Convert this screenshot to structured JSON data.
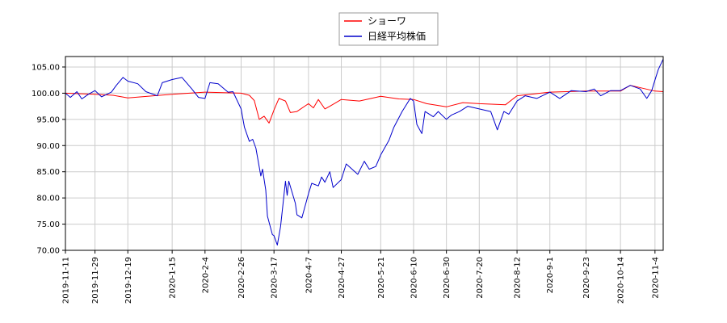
{
  "chart_data": {
    "type": "line",
    "title": "",
    "xlabel": "",
    "ylabel": "",
    "ylim": [
      70,
      107
    ],
    "grid": true,
    "legend_position": "top-center",
    "y_ticks": [
      "70.00",
      "75.00",
      "80.00",
      "85.00",
      "90.00",
      "95.00",
      "100.00",
      "105.00"
    ],
    "x_ticks": [
      "2019-11-11",
      "2019-11-29",
      "2019-12-19",
      "2020-1-15",
      "2020-2-4",
      "2020-2-26",
      "2020-3-17",
      "2020-4-7",
      "2020-4-27",
      "2020-5-21",
      "2020-6-10",
      "2020-6-30",
      "2020-7-20",
      "2020-8-12",
      "2020-9-1",
      "2020-9-23",
      "2020-10-14",
      "2020-11-4"
    ],
    "series": [
      {
        "name": "ショーワ",
        "color": "#ff0000",
        "points": [
          [
            "2019-11-11",
            100.0
          ],
          [
            "2019-11-29",
            99.8
          ],
          [
            "2019-12-10",
            99.6
          ],
          [
            "2019-12-19",
            99.1
          ],
          [
            "2020-1-15",
            99.8
          ],
          [
            "2020-2-4",
            100.2
          ],
          [
            "2020-2-26",
            100.0
          ],
          [
            "2020-3-2",
            99.6
          ],
          [
            "2020-3-5",
            98.6
          ],
          [
            "2020-3-8",
            95.0
          ],
          [
            "2020-3-11",
            95.6
          ],
          [
            "2020-3-14",
            94.3
          ],
          [
            "2020-3-17",
            96.8
          ],
          [
            "2020-3-20",
            99.0
          ],
          [
            "2020-3-24",
            98.5
          ],
          [
            "2020-3-27",
            96.3
          ],
          [
            "2020-3-31",
            96.5
          ],
          [
            "2020-4-7",
            98.0
          ],
          [
            "2020-4-10",
            97.2
          ],
          [
            "2020-4-13",
            98.8
          ],
          [
            "2020-4-17",
            97.0
          ],
          [
            "2020-4-20",
            97.5
          ],
          [
            "2020-4-27",
            98.8
          ],
          [
            "2020-5-8",
            98.5
          ],
          [
            "2020-5-21",
            99.4
          ],
          [
            "2020-6-1",
            98.9
          ],
          [
            "2020-6-10",
            98.8
          ],
          [
            "2020-6-18",
            98.0
          ],
          [
            "2020-6-30",
            97.4
          ],
          [
            "2020-7-10",
            98.2
          ],
          [
            "2020-7-20",
            98.0
          ],
          [
            "2020-8-5",
            97.8
          ],
          [
            "2020-8-12",
            99.5
          ],
          [
            "2020-9-1",
            100.2
          ],
          [
            "2020-9-23",
            100.4
          ],
          [
            "2020-10-14",
            100.4
          ],
          [
            "2020-10-20",
            101.5
          ],
          [
            "2020-11-4",
            100.4
          ],
          [
            "2020-11-9",
            100.3
          ]
        ]
      },
      {
        "name": "日経平均株価",
        "color": "#0000cc",
        "points": [
          [
            "2019-11-11",
            100.0
          ],
          [
            "2019-11-14",
            99.2
          ],
          [
            "2019-11-18",
            100.3
          ],
          [
            "2019-11-21",
            98.9
          ],
          [
            "2019-11-25",
            99.8
          ],
          [
            "2019-11-29",
            100.5
          ],
          [
            "2019-12-3",
            99.3
          ],
          [
            "2019-12-9",
            100.2
          ],
          [
            "2019-12-12",
            101.5
          ],
          [
            "2019-12-16",
            103.0
          ],
          [
            "2019-12-19",
            102.3
          ],
          [
            "2019-12-25",
            101.8
          ],
          [
            "2019-12-30",
            100.3
          ],
          [
            "2020-1-6",
            99.5
          ],
          [
            "2020-1-9",
            102.0
          ],
          [
            "2020-1-15",
            102.6
          ],
          [
            "2020-1-21",
            103.0
          ],
          [
            "2020-1-27",
            100.8
          ],
          [
            "2020-1-31",
            99.2
          ],
          [
            "2020-2-4",
            99.0
          ],
          [
            "2020-2-7",
            102.0
          ],
          [
            "2020-2-12",
            101.8
          ],
          [
            "2020-2-18",
            100.2
          ],
          [
            "2020-2-21",
            100.3
          ],
          [
            "2020-2-26",
            97.0
          ],
          [
            "2020-2-28",
            93.5
          ],
          [
            "2020-3-2",
            90.8
          ],
          [
            "2020-3-4",
            91.2
          ],
          [
            "2020-3-6",
            89.5
          ],
          [
            "2020-3-9",
            84.2
          ],
          [
            "2020-3-10",
            85.5
          ],
          [
            "2020-3-12",
            81.5
          ],
          [
            "2020-3-13",
            76.5
          ],
          [
            "2020-3-16",
            73.0
          ],
          [
            "2020-3-17",
            72.8
          ],
          [
            "2020-3-19",
            71.0
          ],
          [
            "2020-3-21",
            74.5
          ],
          [
            "2020-3-24",
            83.2
          ],
          [
            "2020-3-25",
            80.5
          ],
          [
            "2020-3-26",
            83.2
          ],
          [
            "2020-3-30",
            79.0
          ],
          [
            "2020-3-31",
            76.8
          ],
          [
            "2020-4-3",
            76.2
          ],
          [
            "2020-4-7",
            80.8
          ],
          [
            "2020-4-9",
            82.8
          ],
          [
            "2020-4-13",
            82.3
          ],
          [
            "2020-4-15",
            84.0
          ],
          [
            "2020-4-17",
            83.0
          ],
          [
            "2020-4-20",
            85.0
          ],
          [
            "2020-4-22",
            82.0
          ],
          [
            "2020-4-27",
            83.5
          ],
          [
            "2020-4-30",
            86.5
          ],
          [
            "2020-5-7",
            84.5
          ],
          [
            "2020-5-11",
            87.0
          ],
          [
            "2020-5-14",
            85.5
          ],
          [
            "2020-5-18",
            86.0
          ],
          [
            "2020-5-21",
            88.2
          ],
          [
            "2020-5-26",
            91.0
          ],
          [
            "2020-5-29",
            93.5
          ],
          [
            "2020-6-3",
            96.5
          ],
          [
            "2020-6-8",
            99.0
          ],
          [
            "2020-6-10",
            98.5
          ],
          [
            "2020-6-12",
            94.0
          ],
          [
            "2020-6-15",
            92.3
          ],
          [
            "2020-6-17",
            96.5
          ],
          [
            "2020-6-22",
            95.5
          ],
          [
            "2020-6-25",
            96.5
          ],
          [
            "2020-6-30",
            95.0
          ],
          [
            "2020-7-3",
            95.8
          ],
          [
            "2020-7-8",
            96.5
          ],
          [
            "2020-7-13",
            97.5
          ],
          [
            "2020-7-20",
            97.0
          ],
          [
            "2020-7-27",
            96.5
          ],
          [
            "2020-7-31",
            93.0
          ],
          [
            "2020-8-4",
            96.5
          ],
          [
            "2020-8-7",
            96.0
          ],
          [
            "2020-8-12",
            98.5
          ],
          [
            "2020-8-17",
            99.5
          ],
          [
            "2020-8-24",
            99.0
          ],
          [
            "2020-9-1",
            100.2
          ],
          [
            "2020-9-7",
            99.0
          ],
          [
            "2020-9-14",
            100.5
          ],
          [
            "2020-9-23",
            100.3
          ],
          [
            "2020-9-28",
            100.8
          ],
          [
            "2020-10-2",
            99.5
          ],
          [
            "2020-10-8",
            100.5
          ],
          [
            "2020-10-14",
            100.5
          ],
          [
            "2020-10-20",
            101.5
          ],
          [
            "2020-10-26",
            100.8
          ],
          [
            "2020-10-30",
            99.0
          ],
          [
            "2020-11-2",
            100.5
          ],
          [
            "2020-11-4",
            102.5
          ],
          [
            "2020-11-6",
            104.5
          ],
          [
            "2020-11-9",
            106.5
          ]
        ]
      }
    ]
  }
}
